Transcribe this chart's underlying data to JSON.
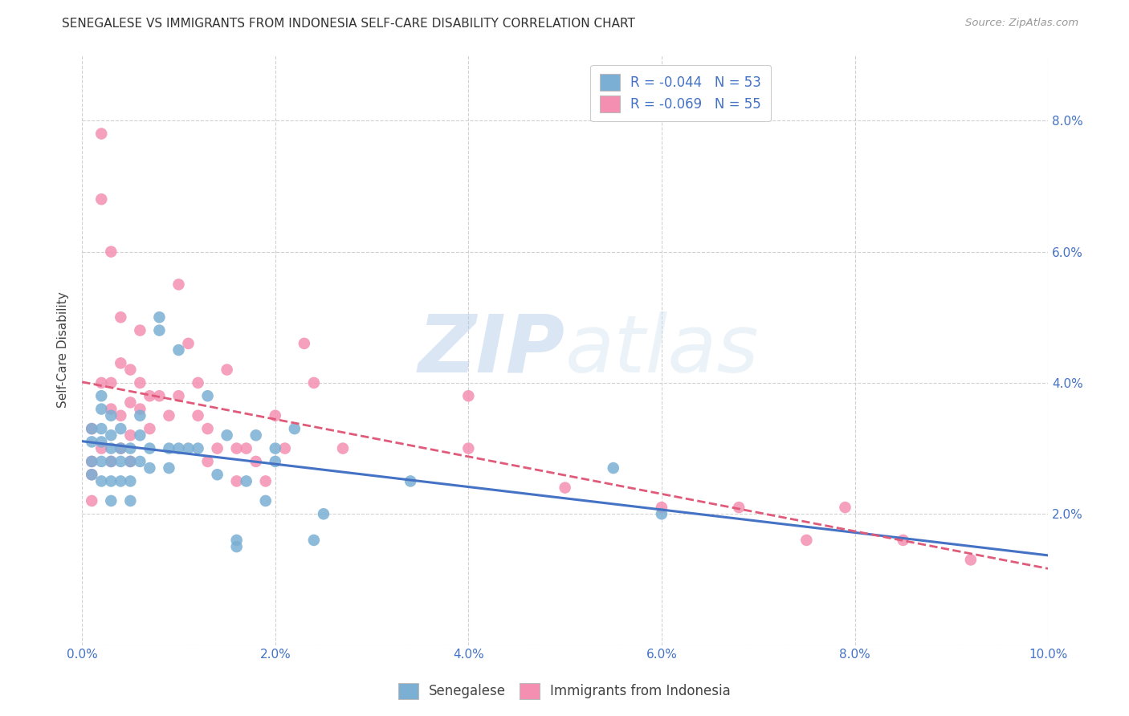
{
  "title": "SENEGALESE VS IMMIGRANTS FROM INDONESIA SELF-CARE DISABILITY CORRELATION CHART",
  "source": "Source: ZipAtlas.com",
  "ylabel": "Self-Care Disability",
  "xlim": [
    0.0,
    0.1
  ],
  "ylim": [
    0.0,
    0.09
  ],
  "xticks": [
    0.0,
    0.02,
    0.04,
    0.06,
    0.08,
    0.1
  ],
  "yticks": [
    0.0,
    0.02,
    0.04,
    0.06,
    0.08
  ],
  "xtick_labels": [
    "0.0%",
    "2.0%",
    "4.0%",
    "6.0%",
    "8.0%",
    "10.0%"
  ],
  "ytick_labels_right": [
    "",
    "2.0%",
    "4.0%",
    "6.0%",
    "8.0%"
  ],
  "legend_line1": "R = -0.044   N = 53",
  "legend_line2": "R = -0.069   N = 55",
  "senegalese_x": [
    0.001,
    0.001,
    0.001,
    0.001,
    0.002,
    0.002,
    0.002,
    0.002,
    0.002,
    0.002,
    0.003,
    0.003,
    0.003,
    0.003,
    0.003,
    0.003,
    0.004,
    0.004,
    0.004,
    0.004,
    0.005,
    0.005,
    0.005,
    0.005,
    0.006,
    0.006,
    0.006,
    0.007,
    0.007,
    0.008,
    0.008,
    0.009,
    0.009,
    0.01,
    0.01,
    0.011,
    0.012,
    0.013,
    0.014,
    0.015,
    0.016,
    0.016,
    0.017,
    0.018,
    0.019,
    0.02,
    0.02,
    0.022,
    0.024,
    0.025,
    0.034,
    0.055,
    0.06
  ],
  "senegalese_y": [
    0.033,
    0.031,
    0.028,
    0.026,
    0.038,
    0.036,
    0.033,
    0.031,
    0.028,
    0.025,
    0.035,
    0.032,
    0.03,
    0.028,
    0.025,
    0.022,
    0.033,
    0.03,
    0.028,
    0.025,
    0.03,
    0.028,
    0.025,
    0.022,
    0.035,
    0.032,
    0.028,
    0.03,
    0.027,
    0.05,
    0.048,
    0.03,
    0.027,
    0.045,
    0.03,
    0.03,
    0.03,
    0.038,
    0.026,
    0.032,
    0.016,
    0.015,
    0.025,
    0.032,
    0.022,
    0.03,
    0.028,
    0.033,
    0.016,
    0.02,
    0.025,
    0.027,
    0.02
  ],
  "indonesia_x": [
    0.001,
    0.001,
    0.001,
    0.001,
    0.002,
    0.002,
    0.002,
    0.002,
    0.003,
    0.003,
    0.003,
    0.003,
    0.004,
    0.004,
    0.004,
    0.004,
    0.005,
    0.005,
    0.005,
    0.005,
    0.006,
    0.006,
    0.006,
    0.007,
    0.007,
    0.008,
    0.009,
    0.01,
    0.01,
    0.011,
    0.012,
    0.012,
    0.013,
    0.013,
    0.014,
    0.015,
    0.016,
    0.016,
    0.017,
    0.018,
    0.019,
    0.02,
    0.021,
    0.023,
    0.024,
    0.027,
    0.04,
    0.04,
    0.05,
    0.06,
    0.068,
    0.075,
    0.079,
    0.085,
    0.092
  ],
  "indonesia_y": [
    0.033,
    0.028,
    0.026,
    0.022,
    0.078,
    0.068,
    0.04,
    0.03,
    0.06,
    0.04,
    0.036,
    0.028,
    0.05,
    0.043,
    0.035,
    0.03,
    0.042,
    0.037,
    0.032,
    0.028,
    0.048,
    0.04,
    0.036,
    0.038,
    0.033,
    0.038,
    0.035,
    0.055,
    0.038,
    0.046,
    0.04,
    0.035,
    0.033,
    0.028,
    0.03,
    0.042,
    0.03,
    0.025,
    0.03,
    0.028,
    0.025,
    0.035,
    0.03,
    0.046,
    0.04,
    0.03,
    0.038,
    0.03,
    0.024,
    0.021,
    0.021,
    0.016,
    0.021,
    0.016,
    0.013
  ],
  "senegalese_color": "#7bafd4",
  "indonesia_color": "#f48fb1",
  "senegalese_line_color": "#4472c4",
  "indonesia_line_color": "#e05a7a",
  "watermark_zip": "ZIP",
  "watermark_atlas": "atlas",
  "background_color": "#ffffff",
  "grid_color": "#cccccc"
}
